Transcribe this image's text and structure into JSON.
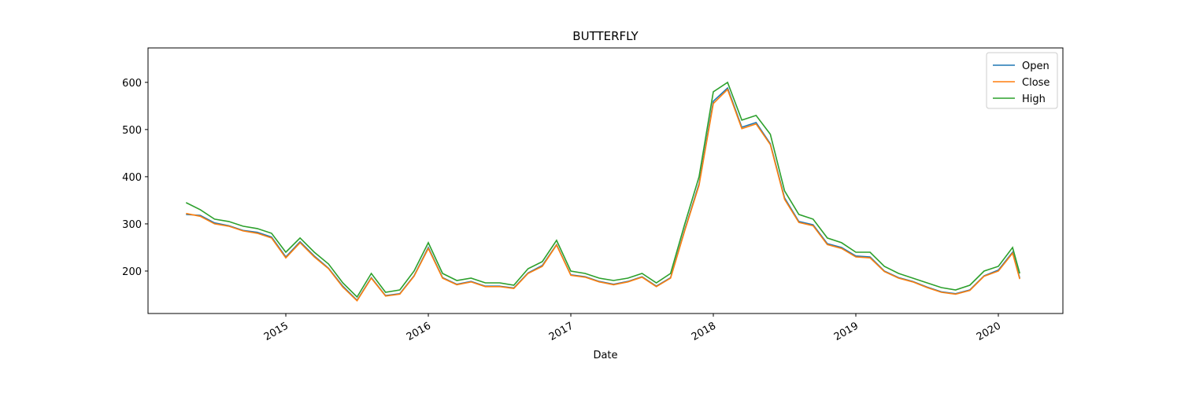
{
  "chart_data": {
    "type": "line",
    "title": "BUTTERFLY",
    "xlabel": "Date",
    "x": [
      2014.3,
      2014.4,
      2014.5,
      2014.6,
      2014.7,
      2014.8,
      2014.9,
      2015.0,
      2015.1,
      2015.2,
      2015.3,
      2015.4,
      2015.5,
      2015.6,
      2015.7,
      2015.8,
      2015.9,
      2016.0,
      2016.1,
      2016.2,
      2016.3,
      2016.4,
      2016.5,
      2016.6,
      2016.7,
      2016.8,
      2016.9,
      2017.0,
      2017.1,
      2017.2,
      2017.3,
      2017.4,
      2017.5,
      2017.6,
      2017.7,
      2017.8,
      2017.9,
      2018.0,
      2018.1,
      2018.2,
      2018.3,
      2018.4,
      2018.5,
      2018.6,
      2018.7,
      2018.8,
      2018.9,
      2019.0,
      2019.1,
      2019.2,
      2019.3,
      2019.4,
      2019.5,
      2019.6,
      2019.7,
      2019.8,
      2019.9,
      2020.0,
      2020.1,
      2020.15
    ],
    "series": [
      {
        "name": "Open",
        "color": "#1f77b4",
        "values": [
          320,
          318,
          302,
          296,
          286,
          282,
          272,
          230,
          262,
          232,
          206,
          168,
          138,
          186,
          148,
          152,
          190,
          250,
          186,
          172,
          178,
          168,
          168,
          164,
          196,
          212,
          256,
          192,
          188,
          178,
          172,
          178,
          188,
          168,
          186,
          288,
          385,
          560,
          588,
          505,
          515,
          470,
          355,
          305,
          298,
          258,
          250,
          232,
          230,
          200,
          186,
          178,
          166,
          156,
          152,
          160,
          190,
          202,
          240,
          185
        ]
      },
      {
        "name": "Close",
        "color": "#ff7f0e",
        "values": [
          322,
          316,
          300,
          295,
          285,
          280,
          270,
          228,
          260,
          230,
          205,
          166,
          137,
          185,
          147,
          151,
          189,
          248,
          185,
          171,
          177,
          167,
          167,
          163,
          195,
          210,
          255,
          191,
          187,
          177,
          171,
          177,
          187,
          167,
          185,
          286,
          382,
          555,
          585,
          502,
          512,
          468,
          352,
          303,
          296,
          256,
          248,
          230,
          228,
          199,
          185,
          177,
          165,
          155,
          151,
          159,
          189,
          200,
          238,
          183
        ]
      },
      {
        "name": "High",
        "color": "#2ca02c",
        "values": [
          345,
          330,
          310,
          305,
          295,
          290,
          280,
          240,
          270,
          240,
          215,
          175,
          145,
          195,
          155,
          160,
          200,
          260,
          195,
          180,
          185,
          175,
          175,
          170,
          205,
          220,
          265,
          200,
          195,
          185,
          180,
          185,
          195,
          175,
          195,
          300,
          400,
          580,
          600,
          520,
          530,
          490,
          370,
          320,
          310,
          270,
          260,
          240,
          240,
          210,
          195,
          185,
          175,
          165,
          160,
          170,
          200,
          210,
          250,
          195
        ]
      }
    ],
    "xlim": [
      2014.033,
      2020.453
    ],
    "xticks": [
      2015,
      2016,
      2017,
      2018,
      2019,
      2020
    ],
    "ylim": [
      110,
      673
    ],
    "yticks": [
      200,
      300,
      400,
      500,
      600
    ],
    "legend": "upper right"
  }
}
